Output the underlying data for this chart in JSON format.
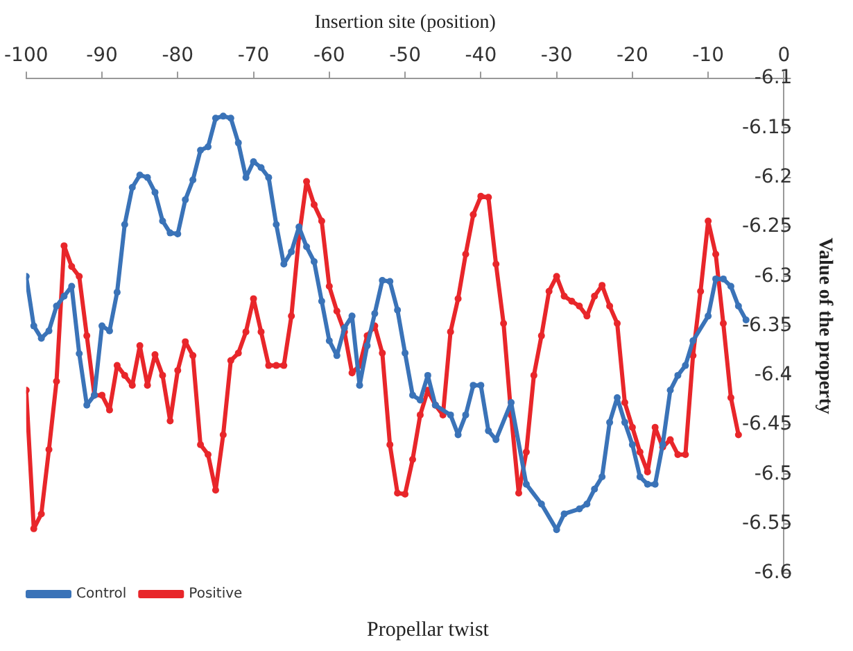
{
  "chart_data": {
    "type": "line",
    "title": "Propellar twist",
    "xlabel": "Insertion site (position)",
    "ylabel": "Value of the property",
    "xlim": [
      -100,
      0
    ],
    "xticks": [
      -100,
      -90,
      -80,
      -70,
      -60,
      -50,
      -40,
      -30,
      -20,
      -10,
      0
    ],
    "ylim": [
      -6.6,
      -6.1
    ],
    "yticks": [
      -6.6,
      -6.55,
      -6.5,
      -6.45,
      -6.4,
      -6.35,
      -6.3,
      -6.25,
      -6.2,
      -6.15,
      -6.1
    ],
    "grid": false,
    "legend": "bottom left",
    "marker": "circle",
    "line_style": "solid",
    "series": [
      {
        "name": "Control",
        "color": "#3a73b8",
        "x": [
          -100,
          -99,
          -98,
          -97,
          -96,
          -95,
          -94,
          -93,
          -92,
          -91,
          -90,
          -89,
          -88,
          -87,
          -86,
          -85,
          -84,
          -83,
          -82,
          -81,
          -80,
          -79,
          -78,
          -77,
          -76,
          -75,
          -74,
          -73,
          -72,
          -71,
          -70,
          -69,
          -68,
          -67,
          -66,
          -65,
          -64,
          -63,
          -62,
          -61,
          -60,
          -59,
          -58,
          -57,
          -56,
          -55,
          -54,
          -53,
          -52,
          -51,
          -50,
          -49,
          -48,
          -47,
          -46,
          -44,
          -43,
          -42,
          -41,
          -40,
          -39,
          -38,
          -36,
          -34,
          -32,
          -30,
          -29,
          -27,
          -26,
          -25,
          -24,
          -23,
          -22,
          -21,
          -20,
          -19,
          -18,
          -17,
          -16,
          -15,
          -14,
          -13,
          -12,
          -10,
          -9,
          -8,
          -7,
          -6,
          -5
        ],
        "values": [
          -6.3,
          -6.35,
          -6.3625,
          -6.355,
          -6.33,
          -6.32,
          -6.31,
          -6.378,
          -6.43,
          -6.42,
          -6.35,
          -6.355,
          -6.316,
          -6.2475,
          -6.21,
          -6.1975,
          -6.2,
          -6.215,
          -6.244,
          -6.256,
          -6.257,
          -6.2225,
          -6.2025,
          -6.1725,
          -6.169,
          -6.14,
          -6.138,
          -6.14,
          -6.165,
          -6.2,
          -6.184,
          -6.19,
          -6.2,
          -6.2475,
          -6.2875,
          -6.275,
          -6.25,
          -6.27,
          -6.285,
          -6.325,
          -6.365,
          -6.38,
          -6.352,
          -6.34,
          -6.41,
          -6.37,
          -6.3375,
          -6.304,
          -6.305,
          -6.334,
          -6.3775,
          -6.42,
          -6.425,
          -6.4,
          -6.43,
          -6.44,
          -6.46,
          -6.44,
          -6.41,
          -6.41,
          -6.456,
          -6.465,
          -6.4275,
          -6.51,
          -6.53,
          -6.556,
          -6.54,
          -6.535,
          -6.53,
          -6.515,
          -6.5025,
          -6.4475,
          -6.4225,
          -6.4475,
          -6.47,
          -6.5025,
          -6.51,
          -6.51,
          -6.47,
          -6.415,
          -6.4,
          -6.39,
          -6.365,
          -6.34,
          -6.3025,
          -6.3025,
          -6.31,
          -6.33,
          -6.344
        ]
      },
      {
        "name": "Positive",
        "color": "#e8262a",
        "x": [
          -100,
          -99,
          -98,
          -97,
          -96,
          -95,
          -94,
          -93,
          -92,
          -91,
          -90,
          -89,
          -88,
          -87,
          -86,
          -85,
          -84,
          -83,
          -82,
          -81,
          -80,
          -79,
          -78,
          -77,
          -76,
          -75,
          -74,
          -73,
          -72,
          -71,
          -70,
          -69,
          -68,
          -67,
          -66,
          -65,
          -64,
          -63,
          -62,
          -61,
          -60,
          -59,
          -58,
          -57,
          -56,
          -55,
          -54,
          -53,
          -52,
          -51,
          -50,
          -49,
          -48,
          -47,
          -46,
          -45,
          -44,
          -43,
          -42,
          -41,
          -40,
          -39,
          -38,
          -37,
          -36,
          -35,
          -34,
          -33,
          -32,
          -31,
          -30,
          -29,
          -28,
          -27,
          -26,
          -25,
          -24,
          -23,
          -22,
          -21,
          -20,
          -19,
          -18,
          -17,
          -16,
          -15,
          -14,
          -13,
          -12,
          -11,
          -10,
          -9,
          -8,
          -7,
          -6
        ],
        "values": [
          -6.415,
          -6.555,
          -6.54,
          -6.475,
          -6.406,
          -6.269,
          -6.29,
          -6.3,
          -6.36,
          -6.42,
          -6.42,
          -6.435,
          -6.39,
          -6.4,
          -6.41,
          -6.37,
          -6.41,
          -6.379,
          -6.4,
          -6.446,
          -6.395,
          -6.366,
          -6.38,
          -6.47,
          -6.48,
          -6.516,
          -6.46,
          -6.385,
          -6.3775,
          -6.356,
          -6.3225,
          -6.356,
          -6.39,
          -6.39,
          -6.39,
          -6.34,
          -6.26,
          -6.204,
          -6.2275,
          -6.244,
          -6.31,
          -6.335,
          -6.356,
          -6.3975,
          -6.39,
          -6.36,
          -6.35,
          -6.3775,
          -6.47,
          -6.519,
          -6.52,
          -6.485,
          -6.44,
          -6.415,
          -6.43,
          -6.44,
          -6.356,
          -6.3225,
          -6.2775,
          -6.2375,
          -6.219,
          -6.22,
          -6.2875,
          -6.3475,
          -6.44,
          -6.519,
          -6.4775,
          -6.4,
          -6.36,
          -6.315,
          -6.3,
          -6.32,
          -6.325,
          -6.33,
          -6.34,
          -6.32,
          -6.309,
          -6.33,
          -6.3475,
          -6.4275,
          -6.4525,
          -6.4775,
          -6.4975,
          -6.4525,
          -6.4725,
          -6.465,
          -6.48,
          -6.48,
          -6.38,
          -6.315,
          -6.244,
          -6.2775,
          -6.3475,
          -6.4225,
          -6.46
        ]
      }
    ]
  }
}
